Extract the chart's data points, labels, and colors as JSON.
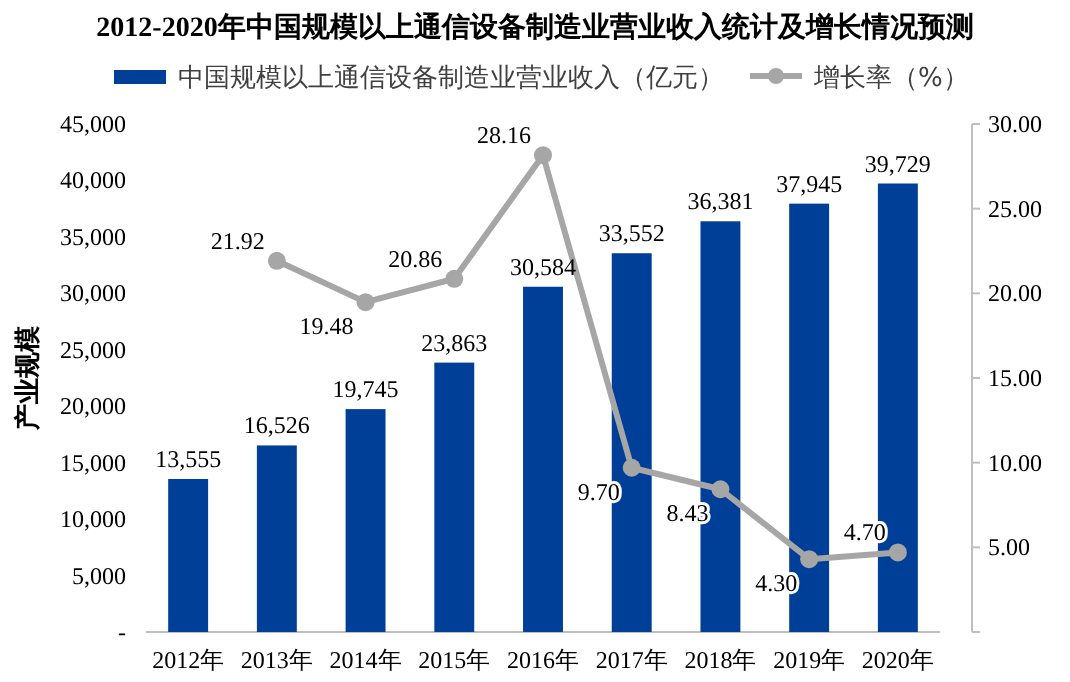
{
  "chart_data": {
    "type": "bar",
    "title": "2012-2020年中国规模以上通信设备制造业营业收入统计及增长情况预测",
    "ylabel": "产业规模",
    "categories": [
      "2012年",
      "2013年",
      "2014年",
      "2015年",
      "2016年",
      "2017年",
      "2018年",
      "2019年",
      "2020年"
    ],
    "series": [
      {
        "name": "中国规模以上通信设备制造业营业收入（亿元）",
        "color": "#003f98",
        "values": [
          13555,
          16526,
          19745,
          23863,
          30584,
          33552,
          36381,
          37945,
          39729
        ],
        "value_labels": [
          "13,555",
          "16,526",
          "19,745",
          "23,863",
          "30,584",
          "33,552",
          "36,381",
          "37,945",
          "39,729"
        ]
      },
      {
        "name": "增长率（%）",
        "type": "line",
        "axis": "y2",
        "color": "#a6a6a6",
        "values": [
          null,
          21.92,
          19.48,
          20.86,
          28.16,
          9.7,
          8.43,
          4.3,
          4.7
        ],
        "value_labels": [
          null,
          "21.92",
          "19.48",
          "20.86",
          "28.16",
          "9.70",
          "8.43",
          "4.30",
          "4.70"
        ]
      }
    ],
    "ylim": [
      0,
      45000
    ],
    "yticks": [
      {
        "value": 0,
        "label": "-"
      },
      {
        "value": 5000,
        "label": "5,000"
      },
      {
        "value": 10000,
        "label": "10,000"
      },
      {
        "value": 15000,
        "label": "15,000"
      },
      {
        "value": 20000,
        "label": "20,000"
      },
      {
        "value": 25000,
        "label": "25,000"
      },
      {
        "value": 30000,
        "label": "30,000"
      },
      {
        "value": 35000,
        "label": "35,000"
      },
      {
        "value": 40000,
        "label": "40,000"
      },
      {
        "value": 45000,
        "label": "45,000"
      }
    ],
    "y2lim": [
      0,
      30
    ],
    "y2ticks": [
      {
        "value": 0,
        "label": null
      },
      {
        "value": 5,
        "label": "5.00"
      },
      {
        "value": 10,
        "label": "10.00"
      },
      {
        "value": 15,
        "label": "15.00"
      },
      {
        "value": 20,
        "label": "20.00"
      },
      {
        "value": 25,
        "label": "25.00"
      },
      {
        "value": 30,
        "label": "30.00"
      }
    ],
    "data_labels": true,
    "legend": "top",
    "grid": false,
    "marker": "circle"
  }
}
